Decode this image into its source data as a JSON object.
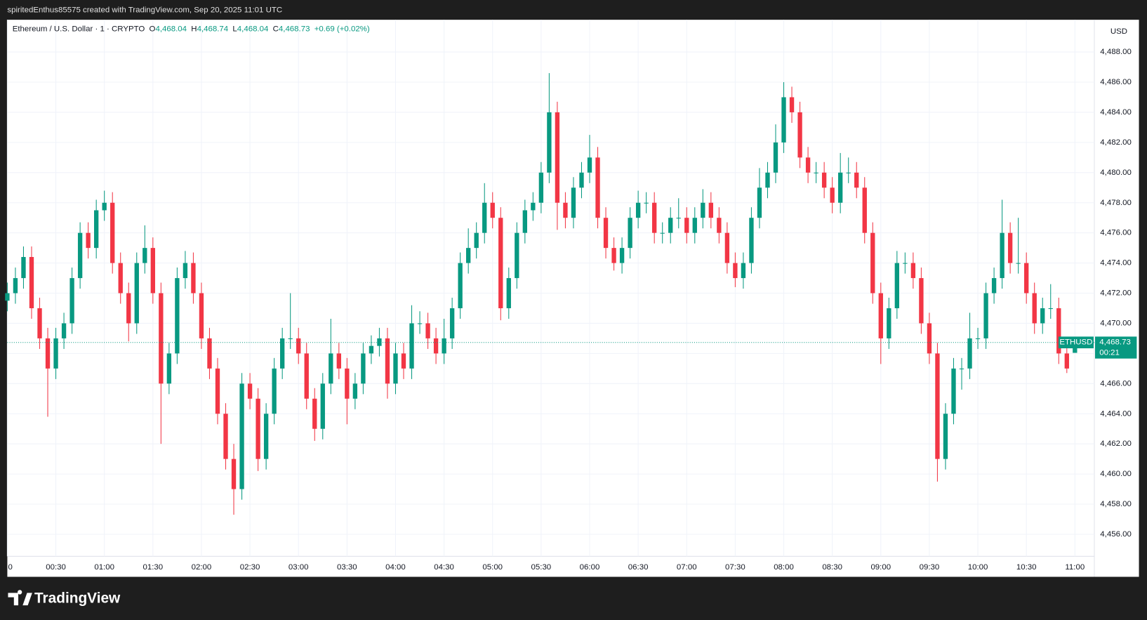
{
  "header": {
    "attribution": "spiritedEnthus85575 created with TradingView.com, Sep 20, 2025 11:01 UTC"
  },
  "legend": {
    "symbol": "Ethereum / U.S. Dollar · 1 · CRYPTO",
    "items": [
      {
        "label": "O",
        "value": "4,468.04"
      },
      {
        "label": "H",
        "value": "4,468.74"
      },
      {
        "label": "L",
        "value": "4,468.04"
      },
      {
        "label": "C",
        "value": "4,468.73"
      }
    ],
    "change": "+0.69 (+0.02%)"
  },
  "currency": "USD",
  "price_tag": {
    "ticker": "ETHUSD",
    "price": "4,468.73",
    "countdown": "00:21"
  },
  "footer": {
    "brand": "TradingView"
  },
  "chart_data": {
    "type": "candlestick",
    "up_color": "#089981",
    "down_color": "#f23645",
    "grid": true,
    "x": [
      0,
      5,
      10,
      15,
      20,
      25,
      30,
      35,
      40,
      45,
      50,
      55,
      60,
      65,
      70,
      75,
      80,
      85,
      90,
      95,
      100,
      105,
      110,
      115,
      120,
      125,
      130,
      135,
      140,
      145,
      150,
      155,
      160,
      165,
      170,
      175,
      180,
      185,
      190,
      195,
      200,
      205,
      210,
      215,
      220,
      225,
      230,
      235,
      240,
      245,
      250,
      255,
      260,
      265,
      270,
      275,
      280,
      285,
      290,
      295,
      300,
      305,
      310,
      315,
      320,
      325,
      330,
      335,
      340,
      345,
      350,
      355,
      360,
      365,
      370,
      375,
      380,
      385,
      390,
      395,
      400,
      405,
      410,
      415,
      420,
      425,
      430,
      435,
      440,
      445,
      450,
      455,
      460,
      465,
      470,
      475,
      480,
      485,
      490,
      495,
      500,
      505,
      510,
      515,
      520,
      525,
      530,
      535,
      540,
      545,
      550,
      555,
      560,
      565,
      570,
      575,
      580,
      585,
      590,
      595,
      600,
      605,
      610,
      615,
      620,
      625,
      630,
      635,
      640,
      645,
      650,
      655,
      660
    ],
    "open": [
      4471.5,
      4472,
      4473,
      4474.4,
      4471,
      4469,
      4467,
      4469,
      4470,
      4473,
      4476,
      4475,
      4477.5,
      4478,
      4474,
      4472,
      4470,
      4474,
      4475,
      4472,
      4466,
      4468,
      4473,
      4474,
      4472,
      4469,
      4467,
      4464,
      4461,
      4459,
      4466,
      4465,
      4461,
      4464,
      4467,
      4469,
      4469,
      4468,
      4465,
      4463,
      4466,
      4468,
      4467,
      4465,
      4466,
      4468,
      4468.5,
      4469,
      4466,
      4468,
      4467,
      4470,
      4470,
      4469,
      4468,
      4469,
      4471,
      4474,
      4475,
      4476,
      4478,
      4477,
      4471,
      4473,
      4476,
      4477.5,
      4478,
      4480,
      4484,
      4478,
      4477,
      4479,
      4480,
      4481,
      4477,
      4475,
      4474,
      4475,
      4477,
      4478,
      4478,
      4476,
      4476,
      4477,
      4477,
      4476,
      4477,
      4478,
      4477,
      4476,
      4474,
      4473,
      4474,
      4477,
      4479,
      4480,
      4482,
      4485,
      4484,
      4481,
      4480,
      4480,
      4479,
      4478,
      4480,
      4480,
      4479,
      4476,
      4472,
      4469,
      4471,
      4474,
      4474,
      4473,
      4470,
      4468,
      4461,
      4464,
      4467,
      4467,
      4469,
      4469,
      4472,
      4473,
      4476,
      4474,
      4474,
      4472,
      4470,
      4471,
      4471,
      4468,
      4468.04
    ],
    "high": [
      4472.7,
      4473.7,
      4475.1,
      4475.1,
      4471.7,
      4469.7,
      4469.7,
      4470.7,
      4473.7,
      4476.7,
      4476.7,
      4478.2,
      4478.8,
      4478.7,
      4474.7,
      4472.7,
      4474.7,
      4476.5,
      4475.7,
      4472.7,
      4468.7,
      4473.7,
      4474.8,
      4474.7,
      4472.7,
      4469.7,
      4467.7,
      4464.7,
      4462,
      4466.7,
      4466.7,
      4465.7,
      4464.7,
      4467.7,
      4469.7,
      4472,
      4469.7,
      4468.7,
      4465.7,
      4466.7,
      4470.3,
      4468.7,
      4467.7,
      4466.7,
      4468.7,
      4469.2,
      4469.7,
      4469.7,
      4468.7,
      4468.7,
      4471.2,
      4470.8,
      4470.7,
      4469.7,
      4470.3,
      4471.7,
      4474.7,
      4476.3,
      4476.7,
      4479.3,
      4478.7,
      4477.7,
      4473.7,
      4476.7,
      4478.2,
      4478.7,
      4480.7,
      4486.6,
      4484.7,
      4478.7,
      4479.7,
      4480.7,
      4482.5,
      4481.7,
      4477.7,
      4475.7,
      4475.7,
      4477.7,
      4478.8,
      4478.7,
      4478.7,
      4476.7,
      4477.7,
      4478.3,
      4477.7,
      4477.7,
      4478.9,
      4478.7,
      4477.7,
      4476.7,
      4474.7,
      4474.7,
      4477.7,
      4480.3,
      4480.7,
      4483.2,
      4486,
      4485.7,
      4484.7,
      4481.7,
      4480.7,
      4480.7,
      4479.7,
      4481.3,
      4481,
      4480.7,
      4479.7,
      4476.7,
      4472.7,
      4471.7,
      4474.8,
      4474.7,
      4474.7,
      4473.7,
      4470.7,
      4468.7,
      4464.7,
      4467.7,
      4467.7,
      4470.7,
      4469.7,
      4472.7,
      4473.7,
      4478.2,
      4476.7,
      4477,
      4474.7,
      4472.7,
      4471.7,
      4472.6,
      4471.7,
      4468.7,
      4468.74
    ],
    "low": [
      4470.8,
      4471.3,
      4472.3,
      4470.3,
      4468.3,
      4463.8,
      4466.3,
      4468.3,
      4469.3,
      4472.3,
      4474.3,
      4474.3,
      4476.8,
      4473.3,
      4471.3,
      4468.8,
      4469.3,
      4473.3,
      4471.3,
      4462,
      4465.3,
      4467.3,
      4472.3,
      4471.3,
      4468.3,
      4466.3,
      4463.3,
      4460.3,
      4457.3,
      4458.3,
      4464.3,
      4460.2,
      4460.3,
      4463.3,
      4466.3,
      4468.3,
      4467.3,
      4464.3,
      4462.2,
      4462.3,
      4465.3,
      4466.3,
      4463.3,
      4464.3,
      4465.3,
      4467.3,
      4467.8,
      4465,
      4465.3,
      4466.3,
      4466.3,
      4469.3,
      4468.3,
      4467.3,
      4467.3,
      4468.3,
      4470.3,
      4473.3,
      4474.3,
      4475.3,
      4476.3,
      4470.2,
      4470.3,
      4472.3,
      4475.3,
      4476.8,
      4477.3,
      4479.3,
      4476.2,
      4476.3,
      4476.3,
      4478.3,
      4479.3,
      4476.3,
      4474.3,
      4473.5,
      4473.3,
      4474.3,
      4476.3,
      4477.3,
      4475.3,
      4475.3,
      4475.3,
      4476.3,
      4475.3,
      4475.3,
      4476.3,
      4476.3,
      4475.3,
      4473.3,
      4472.4,
      4472.3,
      4473.3,
      4476.3,
      4478.3,
      4479.3,
      4481.3,
      4483.3,
      4480.3,
      4479.3,
      4479.3,
      4478.3,
      4477.3,
      4477.3,
      4479.3,
      4478.3,
      4475.3,
      4471.3,
      4467.3,
      4468.3,
      4470.3,
      4473.3,
      4472.3,
      4469.3,
      4467.3,
      4459.5,
      4460.3,
      4463.3,
      4465.6,
      4466.3,
      4468.3,
      4468.3,
      4471.3,
      4472.3,
      4473.3,
      4473.3,
      4471.3,
      4469.3,
      4469.3,
      4470.3,
      4467.3,
      4466.7,
      4468.04
    ],
    "close": [
      4472,
      4473,
      4474.4,
      4471,
      4469,
      4467,
      4469,
      4470,
      4473,
      4476,
      4475,
      4477.5,
      4478,
      4474,
      4472,
      4470,
      4474,
      4475,
      4472,
      4466,
      4468,
      4473,
      4474,
      4472,
      4469,
      4467,
      4464,
      4461,
      4459,
      4466,
      4465,
      4461,
      4464,
      4467,
      4469,
      4469,
      4468,
      4465,
      4463,
      4466,
      4468,
      4467,
      4465,
      4466,
      4468,
      4468.5,
      4469,
      4466,
      4468,
      4467,
      4470,
      4470,
      4469,
      4468,
      4469,
      4471,
      4474,
      4475,
      4476,
      4478,
      4477,
      4471,
      4473,
      4476,
      4477.5,
      4478,
      4480,
      4484,
      4478,
      4477,
      4479,
      4480,
      4481,
      4477,
      4475,
      4474,
      4475,
      4477,
      4478,
      4478,
      4476,
      4476,
      4477,
      4477,
      4476,
      4477,
      4478,
      4477,
      4476,
      4474,
      4473,
      4474,
      4477,
      4479,
      4480,
      4482,
      4485,
      4484,
      4481,
      4480,
      4480,
      4479,
      4478,
      4480,
      4480,
      4479,
      4476,
      4472,
      4469,
      4471,
      4474,
      4474,
      4473,
      4470,
      4468,
      4461,
      4464,
      4467,
      4467,
      4469,
      4469,
      4472,
      4473,
      4476,
      4474,
      4474,
      4472,
      4470,
      4471,
      4471,
      4468,
      4467,
      4468.73
    ],
    "xlim": [
      0,
      672
    ],
    "xticks": [
      {
        "value": 0,
        "label": "0"
      },
      {
        "value": 30,
        "label": "00:30"
      },
      {
        "value": 60,
        "label": "01:00"
      },
      {
        "value": 90,
        "label": "01:30"
      },
      {
        "value": 120,
        "label": "02:00"
      },
      {
        "value": 150,
        "label": "02:30"
      },
      {
        "value": 180,
        "label": "03:00"
      },
      {
        "value": 210,
        "label": "03:30"
      },
      {
        "value": 240,
        "label": "04:00"
      },
      {
        "value": 270,
        "label": "04:30"
      },
      {
        "value": 300,
        "label": "05:00"
      },
      {
        "value": 330,
        "label": "05:30"
      },
      {
        "value": 360,
        "label": "06:00"
      },
      {
        "value": 390,
        "label": "06:30"
      },
      {
        "value": 420,
        "label": "07:00"
      },
      {
        "value": 450,
        "label": "07:30"
      },
      {
        "value": 480,
        "label": "08:00"
      },
      {
        "value": 510,
        "label": "08:30"
      },
      {
        "value": 540,
        "label": "09:00"
      },
      {
        "value": 570,
        "label": "09:30"
      },
      {
        "value": 600,
        "label": "10:00"
      },
      {
        "value": 630,
        "label": "10:30"
      },
      {
        "value": 660,
        "label": "11:00"
      }
    ],
    "ylim": [
      4454.54,
      4490.14
    ],
    "yticks": [
      {
        "value": 4456,
        "label": "4,456.00"
      },
      {
        "value": 4458,
        "label": "4,458.00"
      },
      {
        "value": 4460,
        "label": "4,460.00"
      },
      {
        "value": 4462,
        "label": "4,462.00"
      },
      {
        "value": 4464,
        "label": "4,464.00"
      },
      {
        "value": 4466,
        "label": "4,466.00"
      },
      {
        "value": 4468,
        "label": "4,468.00"
      },
      {
        "value": 4470,
        "label": "4,470.00"
      },
      {
        "value": 4472,
        "label": "4,472.00"
      },
      {
        "value": 4474,
        "label": "4,474.00"
      },
      {
        "value": 4476,
        "label": "4,476.00"
      },
      {
        "value": 4478,
        "label": "4,478.00"
      },
      {
        "value": 4480,
        "label": "4,480.00"
      },
      {
        "value": 4482,
        "label": "4,482.00"
      },
      {
        "value": 4484,
        "label": "4,484.00"
      },
      {
        "value": 4486,
        "label": "4,486.00"
      },
      {
        "value": 4488,
        "label": "4,488.00"
      }
    ]
  }
}
